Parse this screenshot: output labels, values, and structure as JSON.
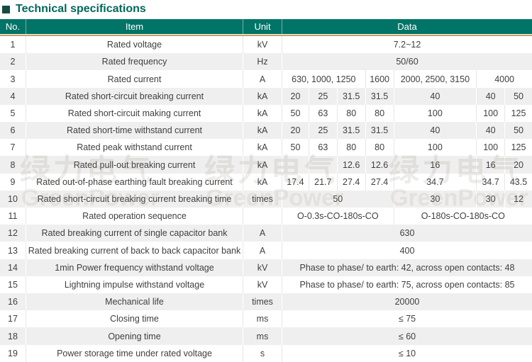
{
  "title": {
    "text": "Technical specifications"
  },
  "colors": {
    "header_bg": "#007467",
    "title_color": "#00685a",
    "accent_line": "#c9a265",
    "stripe": "#f0efef",
    "body_text": "#3f3f3f"
  },
  "table": {
    "headers": {
      "no": "No.",
      "item": "Item",
      "unit": "Unit",
      "data": "Data"
    },
    "rows": [
      {
        "no": "1",
        "item": "Rated voltage",
        "unit": "kV",
        "cells": [
          {
            "t": "7.2~12",
            "s": 1,
            "e": 7
          }
        ]
      },
      {
        "no": "2",
        "item": "Rated frequency",
        "unit": "Hz",
        "cells": [
          {
            "t": "50/60",
            "s": 1,
            "e": 7
          }
        ]
      },
      {
        "no": "3",
        "item": "Rated current",
        "unit": "A",
        "cells": [
          {
            "t": "630, 1000, 1250",
            "s": 1,
            "e": 3
          },
          {
            "t": "1600",
            "s": 4,
            "e": 4
          },
          {
            "t": "2000, 2500, 3150",
            "s": 5,
            "e": 5
          },
          {
            "t": "4000",
            "s": 6,
            "e": 7
          }
        ]
      },
      {
        "no": "4",
        "item": "Rated short-circuit breaking current",
        "unit": "kA",
        "cells": [
          {
            "t": "20",
            "s": 1,
            "e": 1
          },
          {
            "t": "25",
            "s": 2,
            "e": 2
          },
          {
            "t": "31.5",
            "s": 3,
            "e": 3
          },
          {
            "t": "31.5",
            "s": 4,
            "e": 4
          },
          {
            "t": "40",
            "s": 5,
            "e": 5
          },
          {
            "t": "40",
            "s": 6,
            "e": 6
          },
          {
            "t": "50",
            "s": 7,
            "e": 7
          }
        ]
      },
      {
        "no": "5",
        "item": "Rated short-circuit making current",
        "unit": "kA",
        "cells": [
          {
            "t": "50",
            "s": 1,
            "e": 1
          },
          {
            "t": "63",
            "s": 2,
            "e": 2
          },
          {
            "t": "80",
            "s": 3,
            "e": 3
          },
          {
            "t": "80",
            "s": 4,
            "e": 4
          },
          {
            "t": "100",
            "s": 5,
            "e": 5
          },
          {
            "t": "100",
            "s": 6,
            "e": 6
          },
          {
            "t": "125",
            "s": 7,
            "e": 7
          }
        ]
      },
      {
        "no": "6",
        "item": "Rated short-time withstand current",
        "unit": "kA",
        "cells": [
          {
            "t": "20",
            "s": 1,
            "e": 1
          },
          {
            "t": "25",
            "s": 2,
            "e": 2
          },
          {
            "t": "31.5",
            "s": 3,
            "e": 3
          },
          {
            "t": "31.5",
            "s": 4,
            "e": 4
          },
          {
            "t": "40",
            "s": 5,
            "e": 5
          },
          {
            "t": "40",
            "s": 6,
            "e": 6
          },
          {
            "t": "50",
            "s": 7,
            "e": 7
          }
        ]
      },
      {
        "no": "7",
        "item": "Rated peak withstand current",
        "unit": "kA",
        "cells": [
          {
            "t": "50",
            "s": 1,
            "e": 1
          },
          {
            "t": "63",
            "s": 2,
            "e": 2
          },
          {
            "t": "80",
            "s": 3,
            "e": 3
          },
          {
            "t": "80",
            "s": 4,
            "e": 4
          },
          {
            "t": "100",
            "s": 5,
            "e": 5
          },
          {
            "t": "100",
            "s": 6,
            "e": 6
          },
          {
            "t": "125",
            "s": 7,
            "e": 7
          }
        ]
      },
      {
        "no": "8",
        "item": "Rated pull-out breaking current",
        "unit": "kA",
        "cells": [
          {
            "t": "",
            "s": 1,
            "e": 1
          },
          {
            "t": "",
            "s": 2,
            "e": 2
          },
          {
            "t": "12.6",
            "s": 3,
            "e": 3
          },
          {
            "t": "12.6",
            "s": 4,
            "e": 4
          },
          {
            "t": "16",
            "s": 5,
            "e": 5
          },
          {
            "t": "16",
            "s": 6,
            "e": 6
          },
          {
            "t": "20",
            "s": 7,
            "e": 7
          }
        ]
      },
      {
        "no": "9",
        "item": "Rated out-of-phase earthing fault breaking current",
        "unit": "kA",
        "cells": [
          {
            "t": "17.4",
            "s": 1,
            "e": 1
          },
          {
            "t": "21.7",
            "s": 2,
            "e": 2
          },
          {
            "t": "27.4",
            "s": 3,
            "e": 3
          },
          {
            "t": "27.4",
            "s": 4,
            "e": 4
          },
          {
            "t": "34.7",
            "s": 5,
            "e": 5
          },
          {
            "t": "34.7",
            "s": 6,
            "e": 6
          },
          {
            "t": "43.5",
            "s": 7,
            "e": 7
          }
        ]
      },
      {
        "no": "10",
        "item": "Rated short-circuit breaking current breaking time",
        "unit": "times",
        "cells": [
          {
            "t": "50",
            "s": 1,
            "e": 4
          },
          {
            "t": "30",
            "s": 5,
            "e": 5
          },
          {
            "t": "30",
            "s": 6,
            "e": 6
          },
          {
            "t": "12",
            "s": 7,
            "e": 7
          }
        ]
      },
      {
        "no": "11",
        "item": "Rated operation sequence",
        "unit": "",
        "cells": [
          {
            "t": "O-0.3s-CO-180s-CO",
            "s": 1,
            "e": 4
          },
          {
            "t": "O-180s-CO-180s-CO",
            "s": 5,
            "e": 7
          }
        ]
      },
      {
        "no": "12",
        "item": "Rated breaking current of single capacitor bank",
        "unit": "A",
        "cells": [
          {
            "t": "630",
            "s": 1,
            "e": 7
          }
        ]
      },
      {
        "no": "13",
        "item": "Rated breaking current of back to back capacitor bank",
        "unit": "A",
        "cells": [
          {
            "t": "400",
            "s": 1,
            "e": 7
          }
        ]
      },
      {
        "no": "14",
        "item": "1min Power frequency withstand voltage",
        "unit": "kV",
        "cells": [
          {
            "t": "Phase to phase/ to earth: 42, across open contacts: 48",
            "s": 1,
            "e": 7
          }
        ]
      },
      {
        "no": "15",
        "item": "Lightning impulse withstand voltage",
        "unit": "kV",
        "cells": [
          {
            "t": "Phase to phase/ to earth: 75, across open contacts: 85",
            "s": 1,
            "e": 7
          }
        ]
      },
      {
        "no": "16",
        "item": "Mechanical life",
        "unit": "times",
        "cells": [
          {
            "t": "20000",
            "s": 1,
            "e": 7
          }
        ]
      },
      {
        "no": "17",
        "item": "Closing time",
        "unit": "ms",
        "cells": [
          {
            "t": "≤ 75",
            "s": 1,
            "e": 7
          }
        ]
      },
      {
        "no": "18",
        "item": "Opening time",
        "unit": "ms",
        "cells": [
          {
            "t": "≤ 60",
            "s": 1,
            "e": 7
          }
        ]
      },
      {
        "no": "19",
        "item": "Power storage time under rated voltage",
        "unit": "s",
        "cells": [
          {
            "t": "≤ 10",
            "s": 1,
            "e": 7
          }
        ]
      }
    ]
  },
  "watermark": {
    "cn": "绿力电气",
    "en": "GreenPower"
  }
}
